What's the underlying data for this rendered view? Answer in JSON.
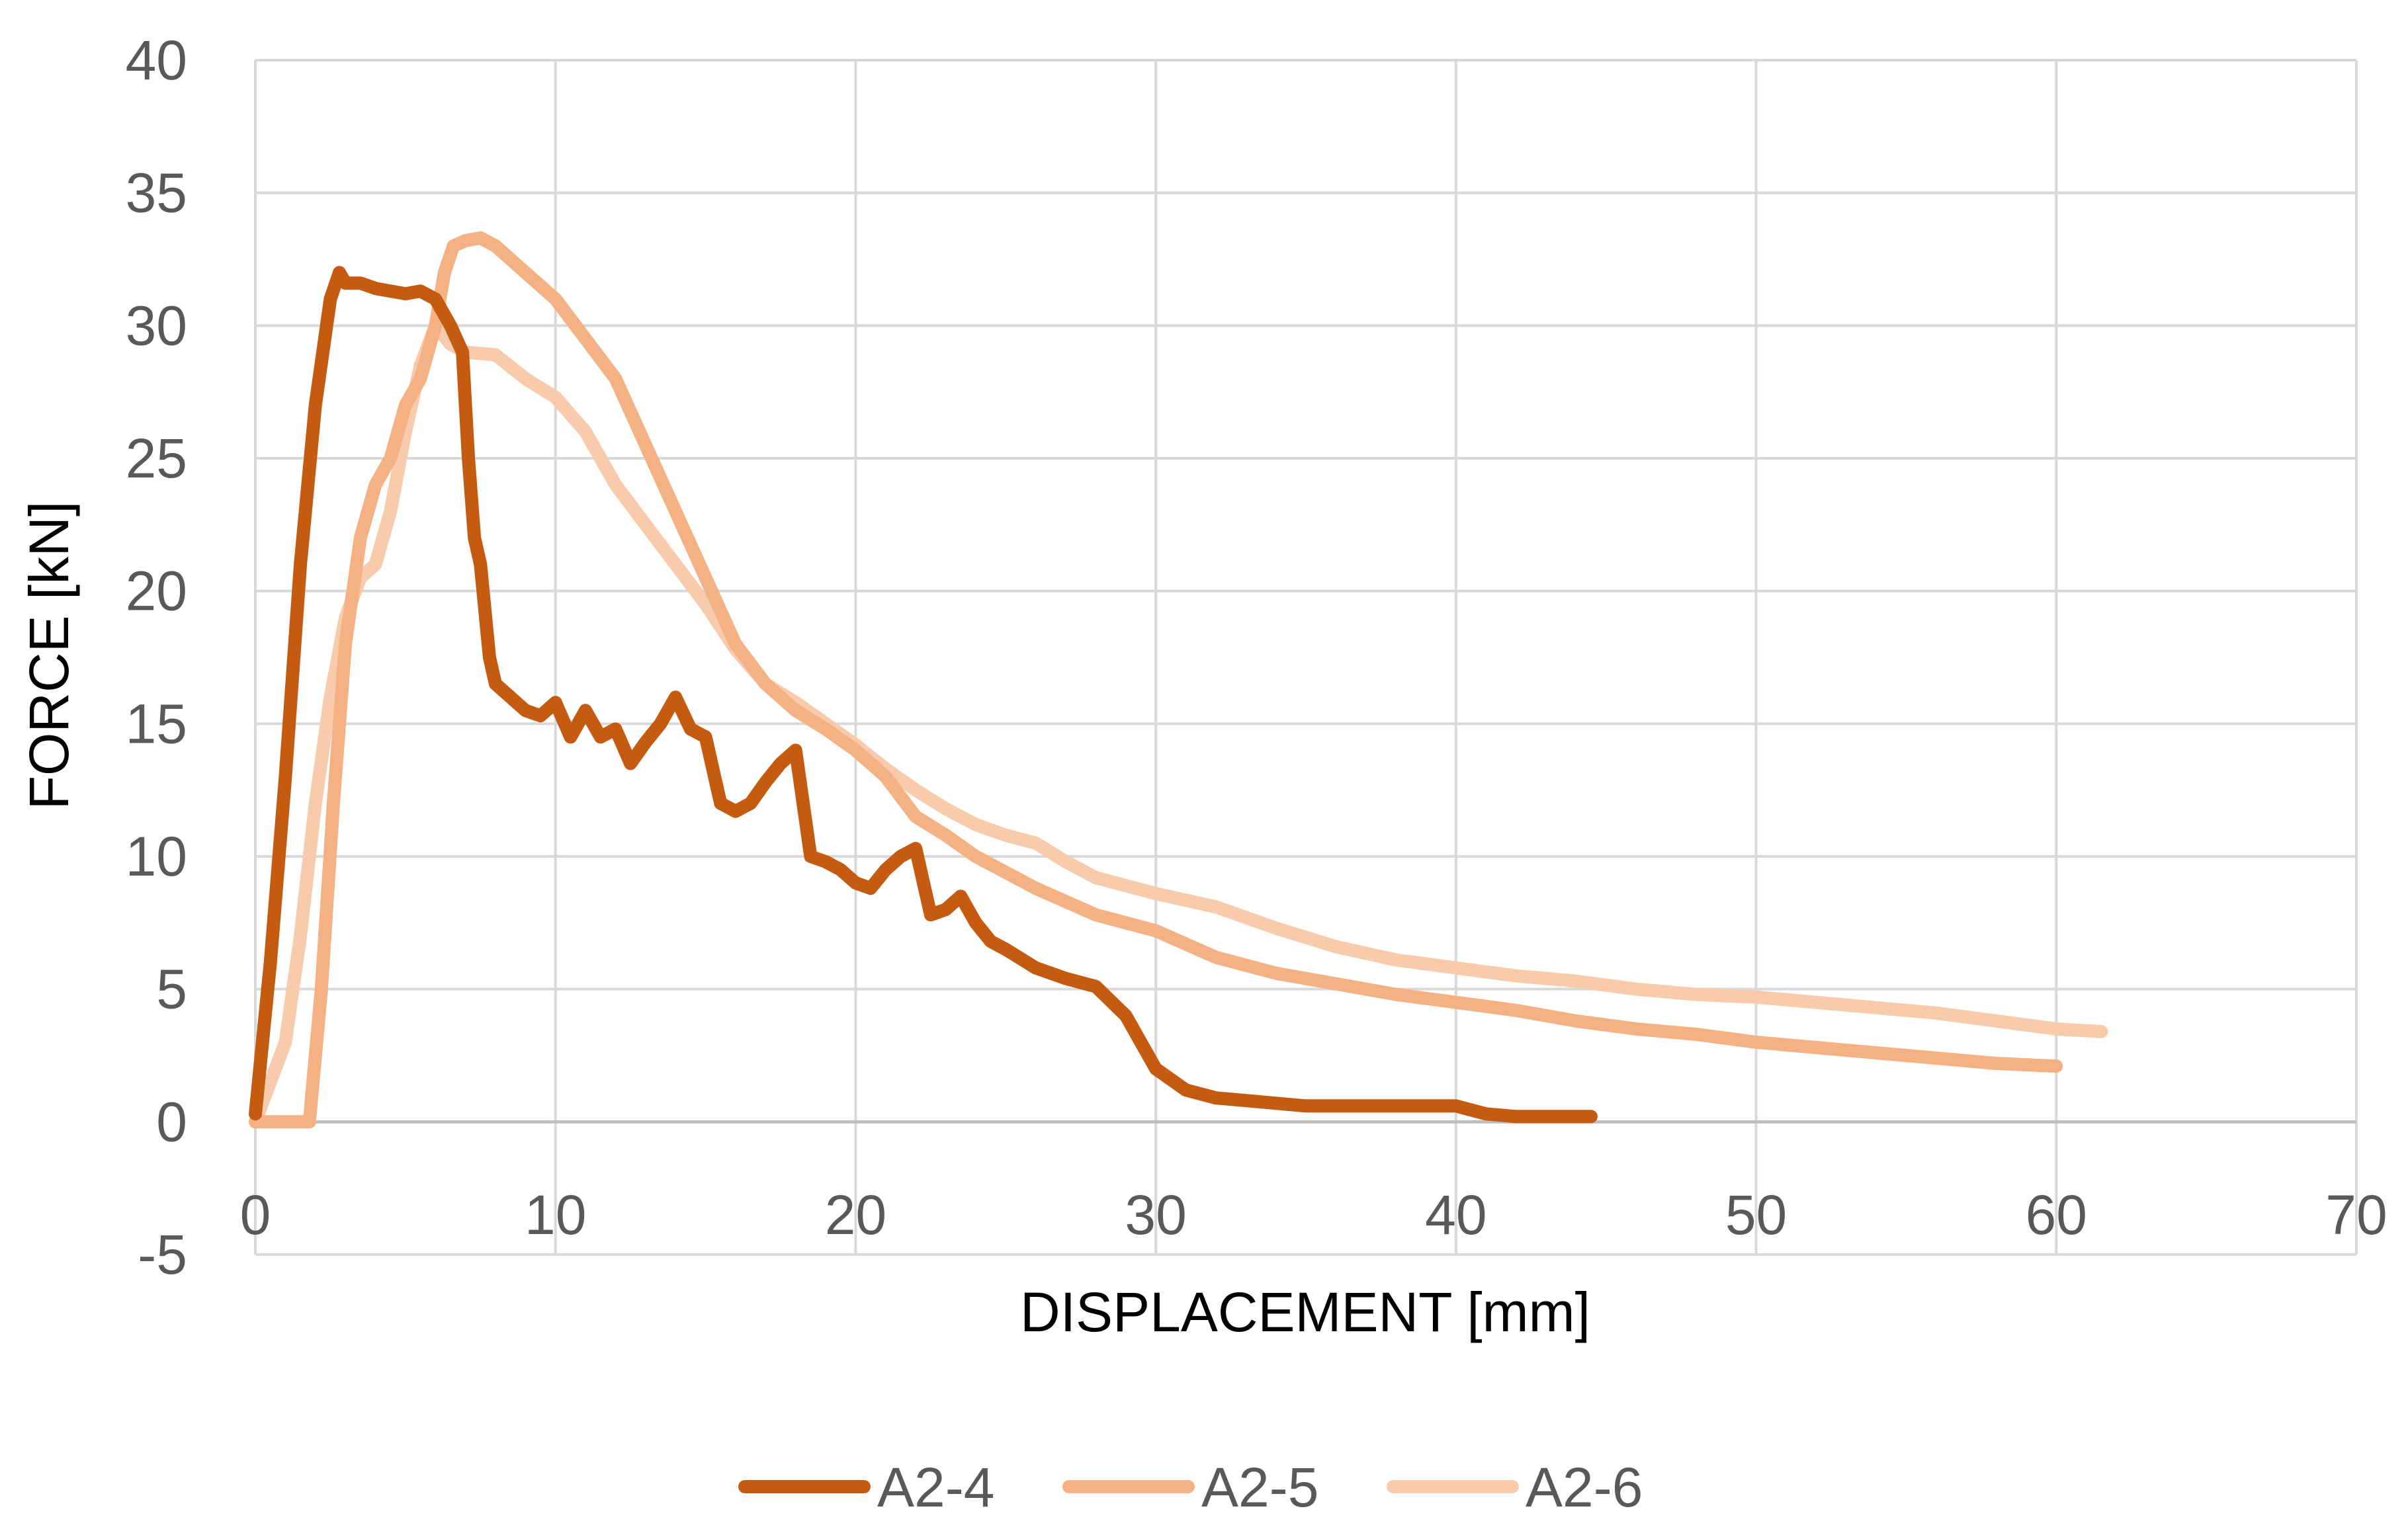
{
  "chart_data": {
    "type": "line",
    "xlabel": "DISPLACEMENT [mm]",
    "ylabel": "FORCE [kN]",
    "xlim": [
      0,
      70
    ],
    "ylim": [
      -5,
      40
    ],
    "xticks": [
      0,
      10,
      20,
      30,
      40,
      50,
      60,
      70
    ],
    "yticks": [
      -5,
      0,
      5,
      10,
      15,
      20,
      25,
      30,
      35,
      40
    ],
    "xtick_labels": [
      "0",
      "10",
      "20",
      "30",
      "40",
      "50",
      "60",
      "70"
    ],
    "ytick_labels": [
      "-5",
      "0",
      "5",
      "10",
      "15",
      "20",
      "25",
      "30",
      "35",
      "40"
    ],
    "grid": true,
    "legend_position": "bottom",
    "series": [
      {
        "name": "A2-4",
        "color": "#C55A11",
        "x": [
          0,
          0.5,
          1,
          1.5,
          2,
          2.5,
          2.8,
          3,
          3.5,
          4,
          4.5,
          5,
          5.5,
          6,
          6.5,
          6.9,
          7.1,
          7.3,
          7.5,
          7.8,
          8,
          8.5,
          9,
          9.5,
          10,
          10.5,
          11,
          11.5,
          12,
          12.5,
          13,
          13.5,
          14,
          14.5,
          15,
          15.5,
          16,
          16.5,
          17,
          17.5,
          18,
          18.5,
          19,
          19.5,
          20,
          20.5,
          21,
          21.5,
          22,
          22.5,
          23,
          23.5,
          24,
          24.5,
          25,
          26,
          27,
          28,
          29,
          30,
          31,
          32,
          33,
          35,
          37,
          38,
          39,
          40,
          41,
          42,
          43,
          44.5
        ],
        "y": [
          0.3,
          6,
          13,
          21,
          27,
          31,
          32,
          31.6,
          31.6,
          31.4,
          31.3,
          31.2,
          31.3,
          31,
          30,
          29,
          25,
          22,
          21,
          17.5,
          16.5,
          16,
          15.5,
          15.3,
          15.8,
          14.5,
          15.5,
          14.5,
          14.8,
          13.5,
          14.3,
          15,
          16,
          14.8,
          14.5,
          12,
          11.7,
          12,
          12.8,
          13.5,
          14,
          10,
          9.8,
          9.5,
          9,
          8.8,
          9.5,
          10,
          10.3,
          7.8,
          8,
          8.5,
          7.5,
          6.8,
          6.5,
          5.8,
          5.4,
          5.1,
          4,
          2,
          1.2,
          0.9,
          0.8,
          0.6,
          0.6,
          0.6,
          0.6,
          0.6,
          0.3,
          0.2,
          0.2,
          0.2
        ]
      },
      {
        "name": "A2-5",
        "color": "#F4B183",
        "x": [
          0,
          1,
          1.8,
          2.2,
          2.6,
          3,
          3.5,
          4,
          4.5,
          5,
          5.5,
          6,
          6.3,
          6.6,
          7,
          7.5,
          8,
          9,
          10,
          11,
          12,
          13,
          14,
          15,
          16,
          17,
          18,
          19,
          20,
          21,
          22,
          23,
          24,
          25,
          26,
          27,
          28,
          30,
          32,
          34,
          36,
          38,
          40,
          42,
          44,
          46,
          48,
          50,
          52,
          54,
          56,
          58,
          60
        ],
        "y": [
          0,
          0,
          0,
          5,
          12,
          18,
          22,
          24,
          25,
          27,
          28,
          30,
          32,
          33,
          33.2,
          33.3,
          33,
          32,
          31,
          29.5,
          28,
          25.5,
          23,
          20.5,
          18,
          16.5,
          15.5,
          14.8,
          14,
          13,
          11.5,
          10.8,
          10,
          9.4,
          8.8,
          8.3,
          7.8,
          7.2,
          6.2,
          5.6,
          5.2,
          4.8,
          4.5,
          4.2,
          3.8,
          3.5,
          3.3,
          3,
          2.8,
          2.6,
          2.4,
          2.2,
          2.1
        ]
      },
      {
        "name": "A2-6",
        "color": "#F8CBAD",
        "x": [
          0,
          1,
          1.5,
          2,
          2.5,
          3,
          3.5,
          4,
          4.5,
          5,
          5.5,
          6,
          6.5,
          7,
          8,
          9,
          10,
          11,
          12,
          13,
          14,
          15,
          16,
          17,
          18,
          19,
          20,
          21,
          22,
          23,
          24,
          25,
          26,
          27,
          28,
          30,
          32,
          34,
          36,
          38,
          40,
          42,
          44,
          46,
          48,
          50,
          52,
          54,
          56,
          58,
          60,
          61.5
        ],
        "y": [
          0,
          3,
          7,
          12,
          16,
          19,
          20.5,
          21,
          23,
          26,
          28.5,
          30,
          29.3,
          29,
          28.9,
          28,
          27.3,
          26,
          24,
          22.5,
          21,
          19.5,
          17.8,
          16.5,
          15.8,
          15,
          14.2,
          13.3,
          12.5,
          11.8,
          11.2,
          10.8,
          10.5,
          9.8,
          9.2,
          8.6,
          8.1,
          7.3,
          6.6,
          6.1,
          5.8,
          5.5,
          5.3,
          5,
          4.8,
          4.7,
          4.5,
          4.3,
          4.1,
          3.8,
          3.5,
          3.4
        ]
      }
    ]
  }
}
